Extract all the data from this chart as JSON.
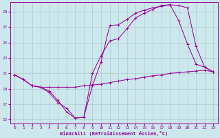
{
  "xlabel": "Windchill (Refroidissement éolien,°C)",
  "bg_color": "#cce8ec",
  "line_color": "#990099",
  "grid_color": "#aacccc",
  "xlim": [
    -0.5,
    23.5
  ],
  "ylim": [
    14.5,
    30.2
  ],
  "yticks": [
    15,
    17,
    19,
    21,
    23,
    25,
    27,
    29
  ],
  "xticks": [
    0,
    1,
    2,
    3,
    4,
    5,
    6,
    7,
    8,
    9,
    10,
    11,
    12,
    13,
    14,
    15,
    16,
    17,
    18,
    19,
    20,
    21,
    22,
    23
  ],
  "line1_x": [
    0,
    1,
    2,
    3,
    4,
    5,
    6,
    7,
    8,
    9,
    10,
    11,
    12,
    13,
    14,
    15,
    16,
    17,
    18,
    19,
    20,
    21,
    22,
    23
  ],
  "line1_y": [
    20.8,
    20.2,
    19.4,
    19.2,
    19.2,
    19.2,
    19.2,
    19.2,
    19.4,
    19.5,
    19.6,
    19.8,
    20.0,
    20.2,
    20.3,
    20.5,
    20.7,
    20.8,
    21.0,
    21.1,
    21.2,
    21.3,
    21.4,
    21.2
  ],
  "line2_x": [
    0,
    1,
    2,
    3,
    4,
    5,
    6,
    7,
    8,
    9,
    10,
    11,
    12,
    13,
    14,
    15,
    16,
    17,
    18,
    19,
    20,
    21,
    22,
    23
  ],
  "line2_y": [
    20.8,
    20.2,
    19.4,
    19.2,
    18.5,
    17.2,
    16.5,
    15.2,
    15.3,
    19.4,
    22.5,
    27.2,
    27.3,
    28.0,
    28.8,
    29.2,
    29.5,
    29.7,
    29.9,
    27.8,
    24.8,
    22.2,
    21.8,
    21.2
  ],
  "line3_x": [
    0,
    1,
    2,
    3,
    4,
    5,
    6,
    7,
    8,
    9,
    10,
    11,
    12,
    13,
    14,
    15,
    16,
    17,
    18,
    19,
    20,
    21,
    22,
    23
  ],
  "line3_y": [
    20.8,
    20.2,
    19.4,
    19.2,
    18.7,
    17.5,
    16.0,
    15.2,
    15.3,
    21.0,
    23.3,
    25.2,
    25.5,
    26.8,
    28.2,
    28.8,
    29.3,
    29.8,
    29.9,
    29.8,
    29.5,
    24.5,
    21.8,
    21.2
  ]
}
